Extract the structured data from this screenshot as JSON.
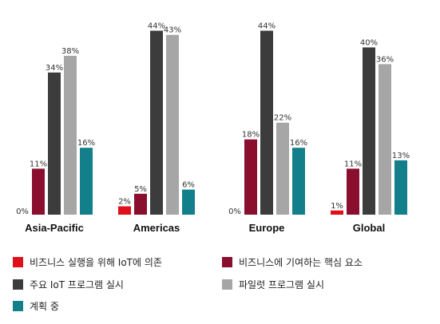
{
  "chart_data": {
    "type": "bar",
    "categories": [
      "Asia-Pacific",
      "Americas",
      "Europe",
      "Global"
    ],
    "series": [
      {
        "name": "비즈니스 실행을 위해 IoT에 의존",
        "color": "#e0101b",
        "values": [
          0,
          2,
          0,
          1
        ],
        "labels": [
          "0%",
          "2%",
          "0%",
          "1%"
        ]
      },
      {
        "name": "비즈니스에 기여하는 핵심 요소",
        "color": "#8a0f2e",
        "values": [
          11,
          5,
          18,
          11
        ],
        "labels": [
          "11%",
          "5%",
          "18%",
          "11%"
        ]
      },
      {
        "name": "주요 IoT 프로그램 실시",
        "color": "#3c3c3c",
        "values": [
          34,
          44,
          44,
          40
        ],
        "labels": [
          "34%",
          "44%",
          "44%",
          "40%"
        ]
      },
      {
        "name": "파일럿 프로그램 실시",
        "color": "#a6a6a6",
        "values": [
          38,
          43,
          22,
          36
        ],
        "labels": [
          "38%",
          "43%",
          "22%",
          "36%"
        ]
      },
      {
        "name": "계획 중",
        "color": "#137f8a",
        "values": [
          16,
          6,
          16,
          13
        ],
        "labels": [
          "16%",
          "6%",
          "16%",
          "13%"
        ]
      }
    ],
    "ylim": [
      0,
      46
    ],
    "grid": false,
    "legend_position": "bottom"
  }
}
